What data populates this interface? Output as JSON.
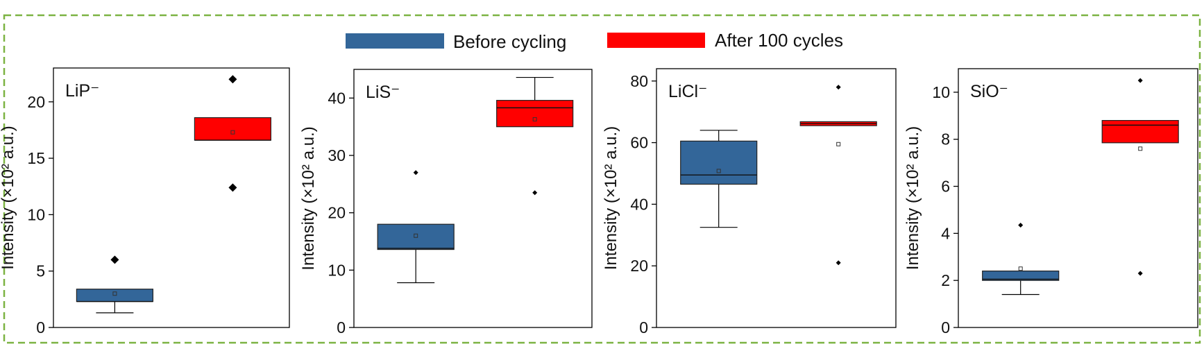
{
  "legend": {
    "entries": [
      {
        "label": "Before cycling",
        "color": "#336699"
      },
      {
        "label": "After 100 cycles",
        "color": "#ff0000"
      }
    ]
  },
  "colors": {
    "border_dash": "#7cb342",
    "before": "#336699",
    "after": "#ff0000"
  },
  "chart_data": [
    {
      "type": "box",
      "title": "LiP⁻",
      "ylabel": "Intensity (×10² a.u.)",
      "ylim": [
        0,
        23
      ],
      "yticks": [
        0,
        5,
        10,
        15,
        20
      ],
      "series": [
        {
          "name": "Before cycling",
          "whisker_low": 1.3,
          "q1": 2.3,
          "median": 2.3,
          "q3": 3.4,
          "whisker_high": 3.4,
          "mean": 3.0,
          "outliers": [
            6.0
          ]
        },
        {
          "name": "After 100 cycles",
          "whisker_low": 16.6,
          "q1": 16.6,
          "median": 16.6,
          "q3": 18.6,
          "whisker_high": 18.6,
          "mean": 17.3,
          "outliers": [
            12.4,
            22.0
          ]
        }
      ]
    },
    {
      "type": "box",
      "title": "LiS⁻",
      "ylabel": "Intensity (×10² a.u.)",
      "ylim": [
        0,
        45
      ],
      "yticks": [
        0,
        10,
        20,
        30,
        40
      ],
      "series": [
        {
          "name": "Before cycling",
          "whisker_low": 7.8,
          "q1": 13.6,
          "median": 13.8,
          "q3": 18.0,
          "whisker_high": 18.0,
          "mean": 16.0,
          "outliers": [
            27.0
          ]
        },
        {
          "name": "After 100 cycles",
          "whisker_low": 35.0,
          "q1": 35.0,
          "median": 38.3,
          "q3": 39.6,
          "whisker_high": 43.6,
          "mean": 36.3,
          "outliers": [
            23.5
          ]
        }
      ]
    },
    {
      "type": "box",
      "title": "LiCl⁻",
      "ylabel": "Intensity (×10² a.u.)",
      "ylim": [
        0,
        84
      ],
      "yticks": [
        0,
        20,
        40,
        60,
        80
      ],
      "series": [
        {
          "name": "Before cycling",
          "whisker_low": 32.5,
          "q1": 46.5,
          "median": 49.5,
          "q3": 60.5,
          "whisker_high": 64.0,
          "mean": 50.8,
          "outliers": []
        },
        {
          "name": "After 100 cycles",
          "whisker_low": 65.5,
          "q1": 65.5,
          "median": 66.2,
          "q3": 66.8,
          "whisker_high": 66.8,
          "mean": 59.5,
          "outliers": [
            21.0,
            78.0
          ]
        }
      ]
    },
    {
      "type": "box",
      "title": "SiO⁻",
      "ylabel": "Intensity (×10² a.u.)",
      "ylim": [
        0,
        11
      ],
      "yticks": [
        0,
        2,
        4,
        6,
        8,
        10
      ],
      "series": [
        {
          "name": "Before cycling",
          "whisker_low": 1.4,
          "q1": 2.0,
          "median": 2.05,
          "q3": 2.4,
          "whisker_high": 2.4,
          "mean": 2.5,
          "outliers": [
            4.35
          ]
        },
        {
          "name": "After 100 cycles",
          "whisker_low": 7.85,
          "q1": 7.85,
          "median": 8.6,
          "q3": 8.8,
          "whisker_high": 8.8,
          "mean": 7.6,
          "outliers": [
            2.3,
            10.5
          ]
        }
      ]
    }
  ]
}
